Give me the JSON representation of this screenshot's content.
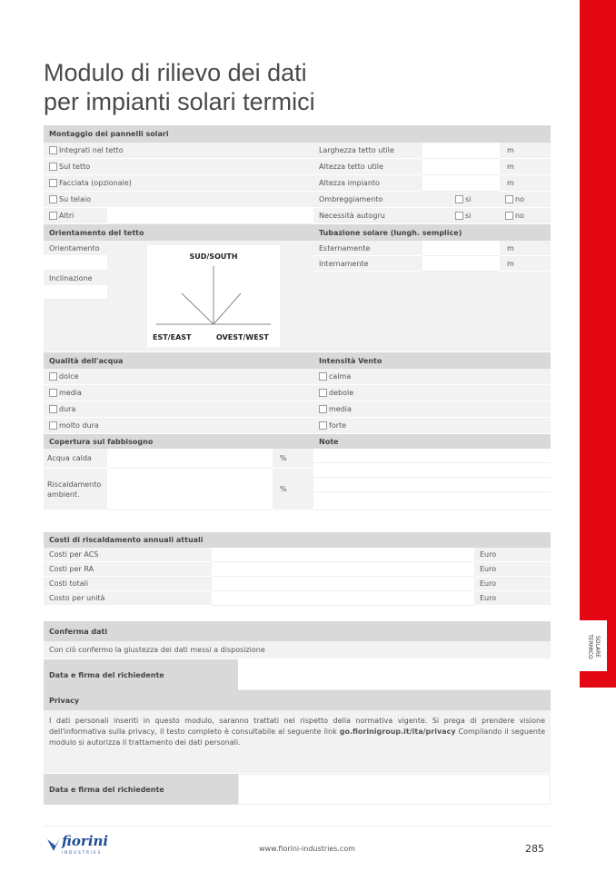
{
  "title_line1": "Modulo di rilievo dei dati",
  "title_line2": "per impianti solari termici",
  "side_tab": {
    "line1": "SOLARE",
    "line2": "TERMICO",
    "color": "#e30613"
  },
  "montaggio": {
    "header": "Montaggio dei pannelli solari",
    "options": [
      "Integrati nel tetto",
      "Sul tetto",
      "Facciata (opzionale)",
      "Su telaio",
      "Altri"
    ]
  },
  "dimensioni": [
    {
      "label": "Larghezza tetto utile",
      "unit": "m"
    },
    {
      "label": "Altezza tetto utile",
      "unit": "m"
    },
    {
      "label": "Altezza impianto",
      "unit": "m"
    }
  ],
  "yesno": [
    {
      "label": "Ombreggiamento",
      "yes": "si",
      "no": "no"
    },
    {
      "label": "Necessità autogru",
      "yes": "si",
      "no": "no"
    }
  ],
  "orientamento": {
    "header": "Orientamento del tetto",
    "orientamento": "Orientamento",
    "inclinazione": "Inclinazione",
    "south": "SUD/SOUTH",
    "east": "EST/EAST",
    "west": "OVEST/WEST"
  },
  "tubazione": {
    "header": "Tubazione solare (lungh. semplice)",
    "rows": [
      {
        "label": "Esternamente",
        "unit": "m"
      },
      {
        "label": "Internamente",
        "unit": "m"
      }
    ]
  },
  "acqua": {
    "header": "Qualità dell'acqua",
    "options": [
      "dolce",
      "media",
      "dura",
      "molto dura"
    ]
  },
  "vento": {
    "header": "Intensità Vento",
    "options": [
      "calma",
      "debole",
      "media",
      "forte"
    ]
  },
  "copertura": {
    "header": "Copertura sul fabbisogno",
    "rows": [
      {
        "label": "Acqua calda",
        "unit": "%"
      },
      {
        "label": "Riscaldamento ambient.",
        "unit": "%"
      }
    ]
  },
  "note": {
    "header": "Note"
  },
  "costi": {
    "header": "Costi di riscaldamento annuali attuali",
    "rows": [
      {
        "label": "Costi per ACS",
        "unit": "Euro"
      },
      {
        "label": "Costi per RA",
        "unit": "Euro"
      },
      {
        "label": "Costi totali",
        "unit": "Euro"
      },
      {
        "label": "Costo per unità",
        "unit": "Euro"
      }
    ]
  },
  "conferma": {
    "header": "Conferma dati",
    "text": "Con ciò confermo la giustezza dei dati messi a disposizione",
    "firma": "Data e firma del richiedente"
  },
  "privacy": {
    "header": "Privacy",
    "text_before": "I dati personali inseriti in questo modulo, saranno trattati nel rispetto della normativa vigente. Si prega di prendere visione dell'informativa sulla privacy, il testo completo è consultabile al seguente link ",
    "link": "go.fiorinigroup.it/ita/privacy",
    "text_after": " Compilando il seguente modulo si autorizza il trattamento dei dati personali.",
    "firma": "Data e firma del richiedente"
  },
  "footer": {
    "logo": "fiorini",
    "logo_sub": "INDUSTRIES",
    "url": "www.fiorini-industries.com",
    "page": "285"
  }
}
